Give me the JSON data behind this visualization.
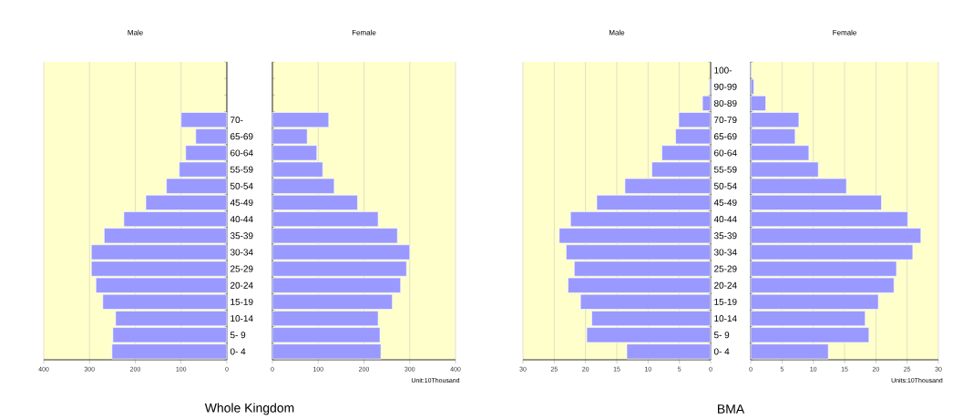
{
  "chart_data": [
    {
      "type": "bar",
      "orientation": "horizontal",
      "title": "Male",
      "categories": [
        null,
        null,
        null,
        "70-",
        "65-69",
        "60-64",
        "55-59",
        "50-54",
        "45-49",
        "40-44",
        "35-39",
        "30-34",
        "25-29",
        "20-24",
        "15-19",
        "10-14",
        "5- 9",
        "0- 4"
      ],
      "series": [
        {
          "color": "#9999ff",
          "values": [
            null,
            null,
            null,
            100,
            68,
            90,
            104,
            132,
            177,
            225,
            268,
            296,
            296,
            286,
            271,
            243,
            249,
            251
          ]
        }
      ],
      "xlim": [
        400,
        0
      ],
      "xticks": [
        400,
        300,
        200,
        100,
        0
      ],
      "grid": "x",
      "annotations": [
        "Whole Kingdom"
      ]
    },
    {
      "type": "bar",
      "orientation": "horizontal",
      "title": "Female",
      "categories": [
        null,
        null,
        null,
        null,
        null,
        null,
        null,
        null,
        null,
        null,
        null,
        null,
        null,
        null,
        null,
        null,
        null,
        null
      ],
      "series": [
        {
          "color": "#9999ff",
          "values": [
            null,
            null,
            null,
            123,
            76,
            97,
            110,
            135,
            186,
            231,
            273,
            300,
            293,
            280,
            262,
            231,
            235,
            237
          ]
        }
      ],
      "xlim": [
        0,
        400
      ],
      "xticks": [
        0,
        100,
        200,
        300,
        400
      ],
      "grid": "x",
      "tick_labels": "x",
      "annotations": [
        "Unit:10Thousand"
      ]
    },
    {
      "type": "bar",
      "orientation": "horizontal",
      "title": "Male",
      "categories": [
        "100-",
        "90-99",
        "80-89",
        "70-79",
        "65-69",
        "60-64",
        "55-59",
        "50-54",
        "45-49",
        "40-44",
        "35-39",
        "30-34",
        "25-29",
        "20-24",
        "15-19",
        "10-14",
        "5- 9",
        "0- 4"
      ],
      "series": [
        {
          "color": "#9999ff",
          "values": [
            null,
            0.2,
            1.3,
            5.1,
            5.6,
            7.8,
            9.4,
            13.7,
            18.2,
            22.4,
            24.2,
            23.1,
            21.8,
            22.8,
            20.8,
            19.0,
            19.8,
            13.4
          ]
        }
      ],
      "xlim": [
        30,
        0
      ],
      "xticks": [
        30,
        25,
        20,
        15,
        10,
        5,
        0
      ],
      "grid": "x",
      "annotations": [
        "BMA"
      ]
    },
    {
      "type": "bar",
      "orientation": "horizontal",
      "title": "Female",
      "categories": [
        null,
        null,
        null,
        null,
        null,
        null,
        null,
        null,
        null,
        null,
        null,
        null,
        null,
        null,
        null,
        null,
        null,
        null
      ],
      "series": [
        {
          "color": "#9999ff",
          "values": [
            0.1,
            0.5,
            2.4,
            7.7,
            7.1,
            9.3,
            10.8,
            15.3,
            20.9,
            25.1,
            27.2,
            25.9,
            23.3,
            22.9,
            20.4,
            18.3,
            18.9,
            12.4
          ]
        }
      ],
      "xlim": [
        0,
        30
      ],
      "xticks": [
        0,
        5,
        10,
        15,
        20,
        25,
        30
      ],
      "grid": "x",
      "tick_labels": "x",
      "annotations": [
        "Units:10Thousand"
      ]
    }
  ]
}
